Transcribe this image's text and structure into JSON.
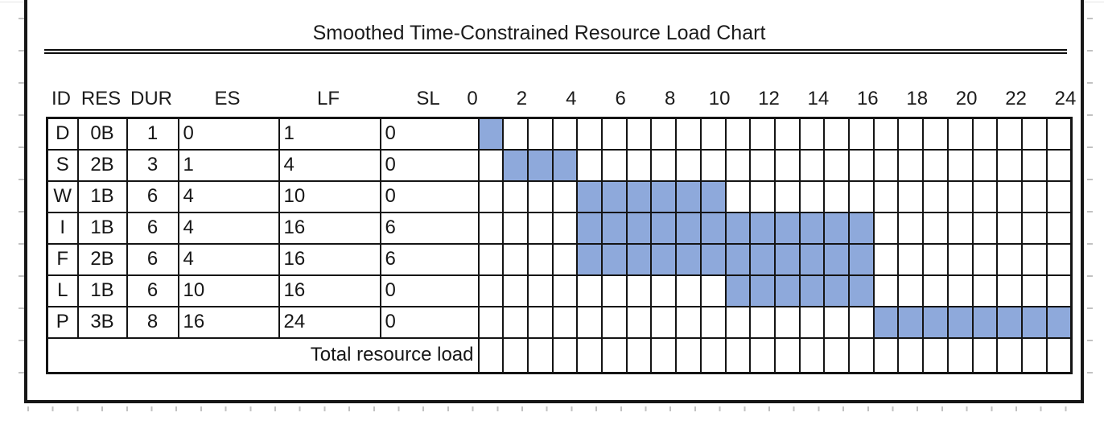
{
  "title": "Smoothed Time-Constrained Resource Load Chart",
  "footer_label": "Total resource load",
  "colors": {
    "bar_fill": "#8EA9DB",
    "grid_border": "#141414",
    "frame_border": "#161616",
    "faint_gridline": "#c2c2c2",
    "text": "#1a1a1a"
  },
  "chart_data": {
    "type": "bar",
    "subtype": "gantt-resource-load",
    "title": "Smoothed Time-Constrained Resource Load Chart",
    "columns": [
      "ID",
      "RES",
      "DUR",
      "ES",
      "LF",
      "SL"
    ],
    "time_axis": {
      "min": 0,
      "max": 24,
      "tick_step": 2,
      "ticks": [
        0,
        2,
        4,
        6,
        8,
        10,
        12,
        14,
        16,
        18,
        20,
        22,
        24
      ],
      "cells": 24
    },
    "tasks": [
      {
        "id": "D",
        "res": "0B",
        "dur": 1,
        "es": 0,
        "lf": 1,
        "sl": 0,
        "bar": [
          0,
          1
        ]
      },
      {
        "id": "S",
        "res": "2B",
        "dur": 3,
        "es": 1,
        "lf": 4,
        "sl": 0,
        "bar": [
          1,
          4
        ]
      },
      {
        "id": "W",
        "res": "1B",
        "dur": 6,
        "es": 4,
        "lf": 10,
        "sl": 0,
        "bar": [
          4,
          10
        ]
      },
      {
        "id": "I",
        "res": "1B",
        "dur": 6,
        "es": 4,
        "lf": 16,
        "sl": 6,
        "bar": [
          4,
          16
        ]
      },
      {
        "id": "F",
        "res": "2B",
        "dur": 6,
        "es": 4,
        "lf": 16,
        "sl": 6,
        "bar": [
          4,
          16
        ]
      },
      {
        "id": "L",
        "res": "1B",
        "dur": 6,
        "es": 10,
        "lf": 16,
        "sl": 0,
        "bar": [
          10,
          16
        ]
      },
      {
        "id": "P",
        "res": "3B",
        "dur": 8,
        "es": 16,
        "lf": 24,
        "sl": 0,
        "bar": [
          16,
          24
        ]
      }
    ],
    "footer_label": "Total resource load",
    "bar_color": "#8EA9DB",
    "legend": "none",
    "grid": true
  }
}
